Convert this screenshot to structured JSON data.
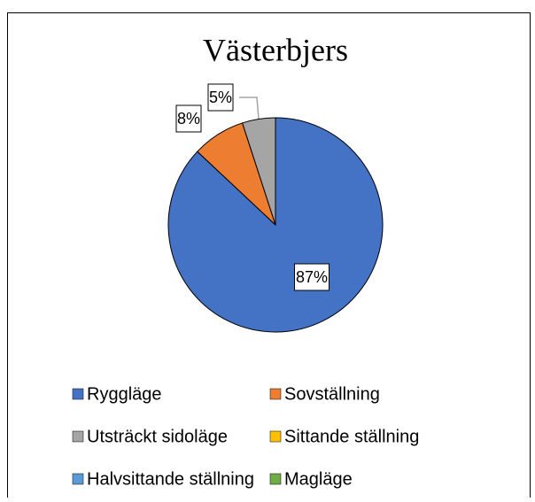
{
  "chart_data": {
    "type": "pie",
    "title": "Västerbjers",
    "categories": [
      "Ryggläge",
      "Sovställning",
      "Utsträckt sidoläge",
      "Sittande ställning",
      "Halvsittande ställning",
      "Magläge"
    ],
    "values": [
      87,
      8,
      5,
      0,
      0,
      0
    ],
    "value_labels": [
      "87%",
      "8%",
      "5%",
      null,
      null,
      null
    ],
    "colors": [
      "#4472c4",
      "#ed7d31",
      "#a5a5a5",
      "#ffc000",
      "#5b9bd5",
      "#70ad47"
    ],
    "legend": "bottom"
  }
}
